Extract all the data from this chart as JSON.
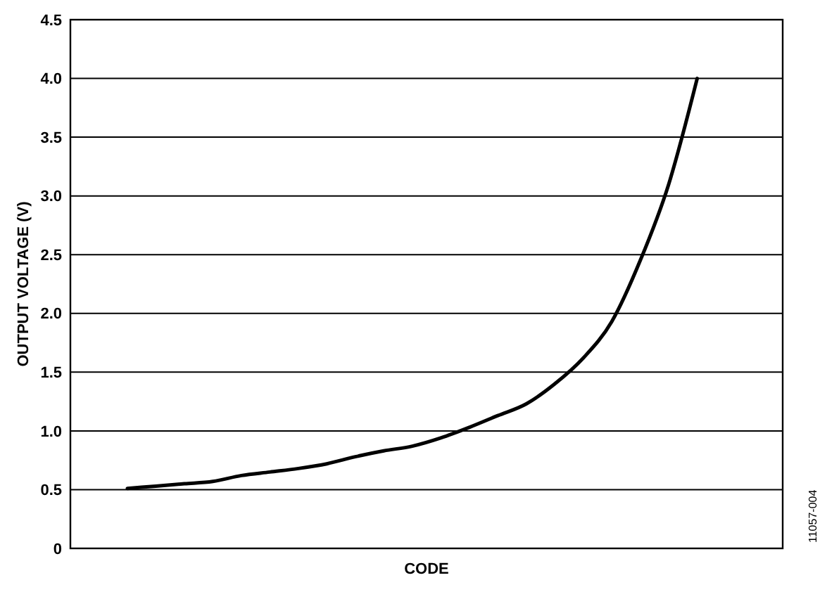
{
  "chart_data": {
    "type": "line",
    "xlabel": "CODE",
    "ylabel": "OUTPUT VOLTAGE (V)",
    "categories": [
      null,
      null,
      null,
      null,
      null,
      null,
      null,
      null,
      null,
      null,
      null,
      null,
      null,
      null,
      null,
      null,
      null,
      null,
      null,
      null,
      null,
      null,
      null,
      null,
      null,
      null
    ],
    "series": [
      {
        "color": "#000000",
        "values": [
          null,
          null,
          0.51,
          0.53,
          0.55,
          0.57,
          0.62,
          0.65,
          0.68,
          0.72,
          0.78,
          0.83,
          0.87,
          0.94,
          1.03,
          1.13,
          1.23,
          1.4,
          1.62,
          1.93,
          2.45,
          3.1,
          4.0,
          null,
          null,
          null
        ]
      }
    ],
    "ylim": [
      0,
      4.5
    ],
    "yticks": [
      0,
      0.5,
      {
        "value": 1,
        "label": "1.0"
      },
      1.5,
      {
        "value": 2,
        "label": "2.0"
      },
      2.5,
      {
        "value": 3,
        "label": "3.0"
      },
      3.5,
      {
        "value": 4,
        "label": "4.0"
      },
      4.5
    ],
    "grid": "y",
    "tick_labels": "y",
    "marker": "none",
    "line_style": "solid",
    "annotations": [
      "11057-004"
    ]
  }
}
